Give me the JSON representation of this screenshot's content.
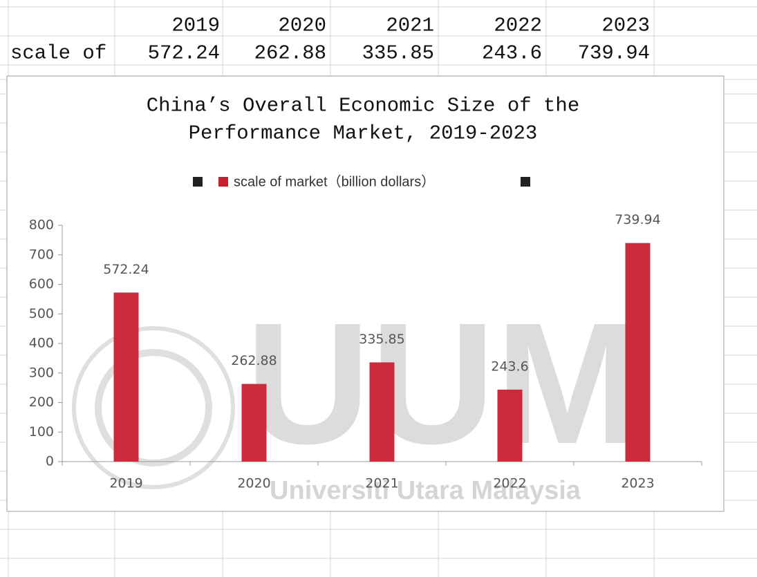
{
  "table": {
    "header": [
      "2019",
      "2020",
      "2021",
      "2022",
      "2023"
    ],
    "rows": [
      {
        "label": "scale of",
        "values": [
          "572.24",
          "262.88",
          "335.85",
          "243.6",
          "739.94"
        ]
      }
    ]
  },
  "chart_data": {
    "type": "bar",
    "title": [
      "China’s Overall Economic Size of the",
      "Performance Market, 2019-2023"
    ],
    "series": [
      {
        "name": "scale of market（billion dollars）",
        "color": "#c8202f",
        "values": [
          572.24,
          262.88,
          335.85,
          243.6,
          739.94
        ]
      }
    ],
    "categories": [
      "2019",
      "2020",
      "2021",
      "2022",
      "2023"
    ],
    "ylim": [
      0,
      800
    ],
    "yticks": [
      0,
      100,
      200,
      300,
      400,
      500,
      600,
      700,
      800
    ],
    "watermark": [
      "UUM",
      "Universiti Utara Malaysia"
    ]
  }
}
